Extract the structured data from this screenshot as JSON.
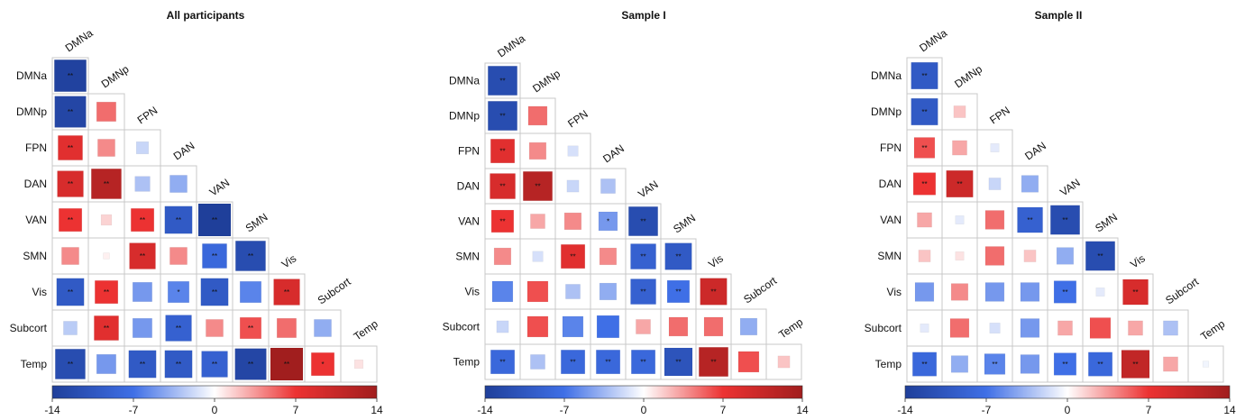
{
  "figure": {
    "colorscale": {
      "min": -14,
      "max": 14,
      "ticks": [
        "-14",
        "-7",
        "0",
        "7",
        "14"
      ],
      "colors": [
        "#1f3f9a",
        "#3f6fe6",
        "#ffffff",
        "#ec3232",
        "#a11e1e"
      ]
    },
    "grid_color": "#c8c8c8"
  },
  "chart_data": [
    {
      "type": "heatmap",
      "title": "All participants",
      "labels": [
        "DMNa",
        "DMNp",
        "FPN",
        "DAN",
        "VAN",
        "SMN",
        "Vis",
        "Subcort",
        "Temp"
      ],
      "lower_triangle_values": [
        [
          -13.5
        ],
        [
          -13,
          5
        ],
        [
          8,
          4,
          -2
        ],
        [
          9,
          12,
          -3,
          -4
        ],
        [
          7,
          1.5,
          7,
          -10,
          -14
        ],
        [
          4,
          0.5,
          9,
          4,
          -8,
          -12
        ],
        [
          -10,
          7,
          -5,
          -6,
          -10,
          -6,
          9
        ],
        [
          -2.5,
          8,
          -5,
          -9,
          4,
          6,
          5,
          -4
        ],
        [
          -12,
          -5,
          -10,
          -10,
          -9,
          -13,
          14,
          7,
          1
        ]
      ],
      "significance": [
        [
          "**"
        ],
        [
          "**",
          ""
        ],
        [
          "**",
          "",
          ""
        ],
        [
          "**",
          "**",
          "",
          ""
        ],
        [
          "**",
          "",
          "**",
          "**",
          "**"
        ],
        [
          "",
          "",
          "**",
          "",
          "**",
          "**"
        ],
        [
          "**",
          "**",
          "",
          "*",
          "**",
          "",
          "**"
        ],
        [
          "",
          "**",
          "",
          "**",
          "",
          "**",
          "",
          ""
        ],
        [
          "**",
          "",
          "**",
          "**",
          "**",
          "**",
          "**",
          "*",
          ""
        ]
      ]
    },
    {
      "type": "heatmap",
      "title": "Sample I",
      "labels": [
        "DMNa",
        "DMNp",
        "FPN",
        "DAN",
        "VAN",
        "SMN",
        "Vis",
        "Subcort",
        "Temp"
      ],
      "lower_triangle_values": [
        [
          -12
        ],
        [
          -12,
          5
        ],
        [
          8,
          4,
          -1.5
        ],
        [
          9,
          12,
          -2,
          -3
        ],
        [
          7,
          3,
          4,
          -5,
          -12
        ],
        [
          4,
          -1.5,
          8,
          4,
          -9,
          -10
        ],
        [
          -6,
          6,
          -3,
          -4,
          -9,
          -7,
          10
        ],
        [
          -2,
          6,
          -6,
          -7,
          3,
          5,
          5,
          -4
        ],
        [
          -8,
          -3,
          -8,
          -8,
          -8,
          -11,
          12,
          6,
          2
        ]
      ],
      "significance": [
        [
          "**"
        ],
        [
          "**",
          ""
        ],
        [
          "**",
          "",
          ""
        ],
        [
          "**",
          "**",
          "",
          ""
        ],
        [
          "**",
          "",
          "",
          "*",
          "**"
        ],
        [
          "",
          "",
          "**",
          "",
          "**",
          "**"
        ],
        [
          "",
          "",
          "",
          "",
          "**",
          "**",
          "**"
        ],
        [
          "",
          "",
          "",
          "",
          "",
          "",
          "",
          ""
        ],
        [
          "**",
          "",
          "**",
          "**",
          "**",
          "**",
          "**",
          "",
          ""
        ]
      ]
    },
    {
      "type": "heatmap",
      "title": "Sample II",
      "labels": [
        "DMNa",
        "DMNp",
        "FPN",
        "DAN",
        "VAN",
        "SMN",
        "Vis",
        "Subcort",
        "Temp"
      ],
      "lower_triangle_values": [
        [
          -10
        ],
        [
          -10,
          2
        ],
        [
          6,
          3,
          -1
        ],
        [
          7,
          10,
          -2,
          -4
        ],
        [
          3,
          -1,
          5,
          -9,
          -12
        ],
        [
          2,
          1,
          5,
          2,
          -4,
          -12
        ],
        [
          -5,
          4,
          -5,
          -5,
          -7,
          -1,
          9
        ],
        [
          -1,
          5,
          -1.5,
          -5,
          3,
          6,
          3,
          -3
        ],
        [
          -8,
          -4,
          -6,
          -5,
          -7,
          -8,
          11,
          3,
          -0.5
        ]
      ],
      "significance": [
        [
          "**"
        ],
        [
          "**",
          ""
        ],
        [
          "**",
          "",
          ""
        ],
        [
          "**",
          "**",
          "",
          ""
        ],
        [
          "",
          "",
          "",
          "**",
          "**"
        ],
        [
          "",
          "",
          "",
          "",
          "",
          "**"
        ],
        [
          "",
          "",
          "",
          "",
          "**",
          "",
          "**"
        ],
        [
          "",
          "",
          "",
          "",
          "",
          "",
          "",
          ""
        ],
        [
          "**",
          "",
          "**",
          "",
          "**",
          "**",
          "**",
          "",
          ""
        ]
      ]
    }
  ]
}
